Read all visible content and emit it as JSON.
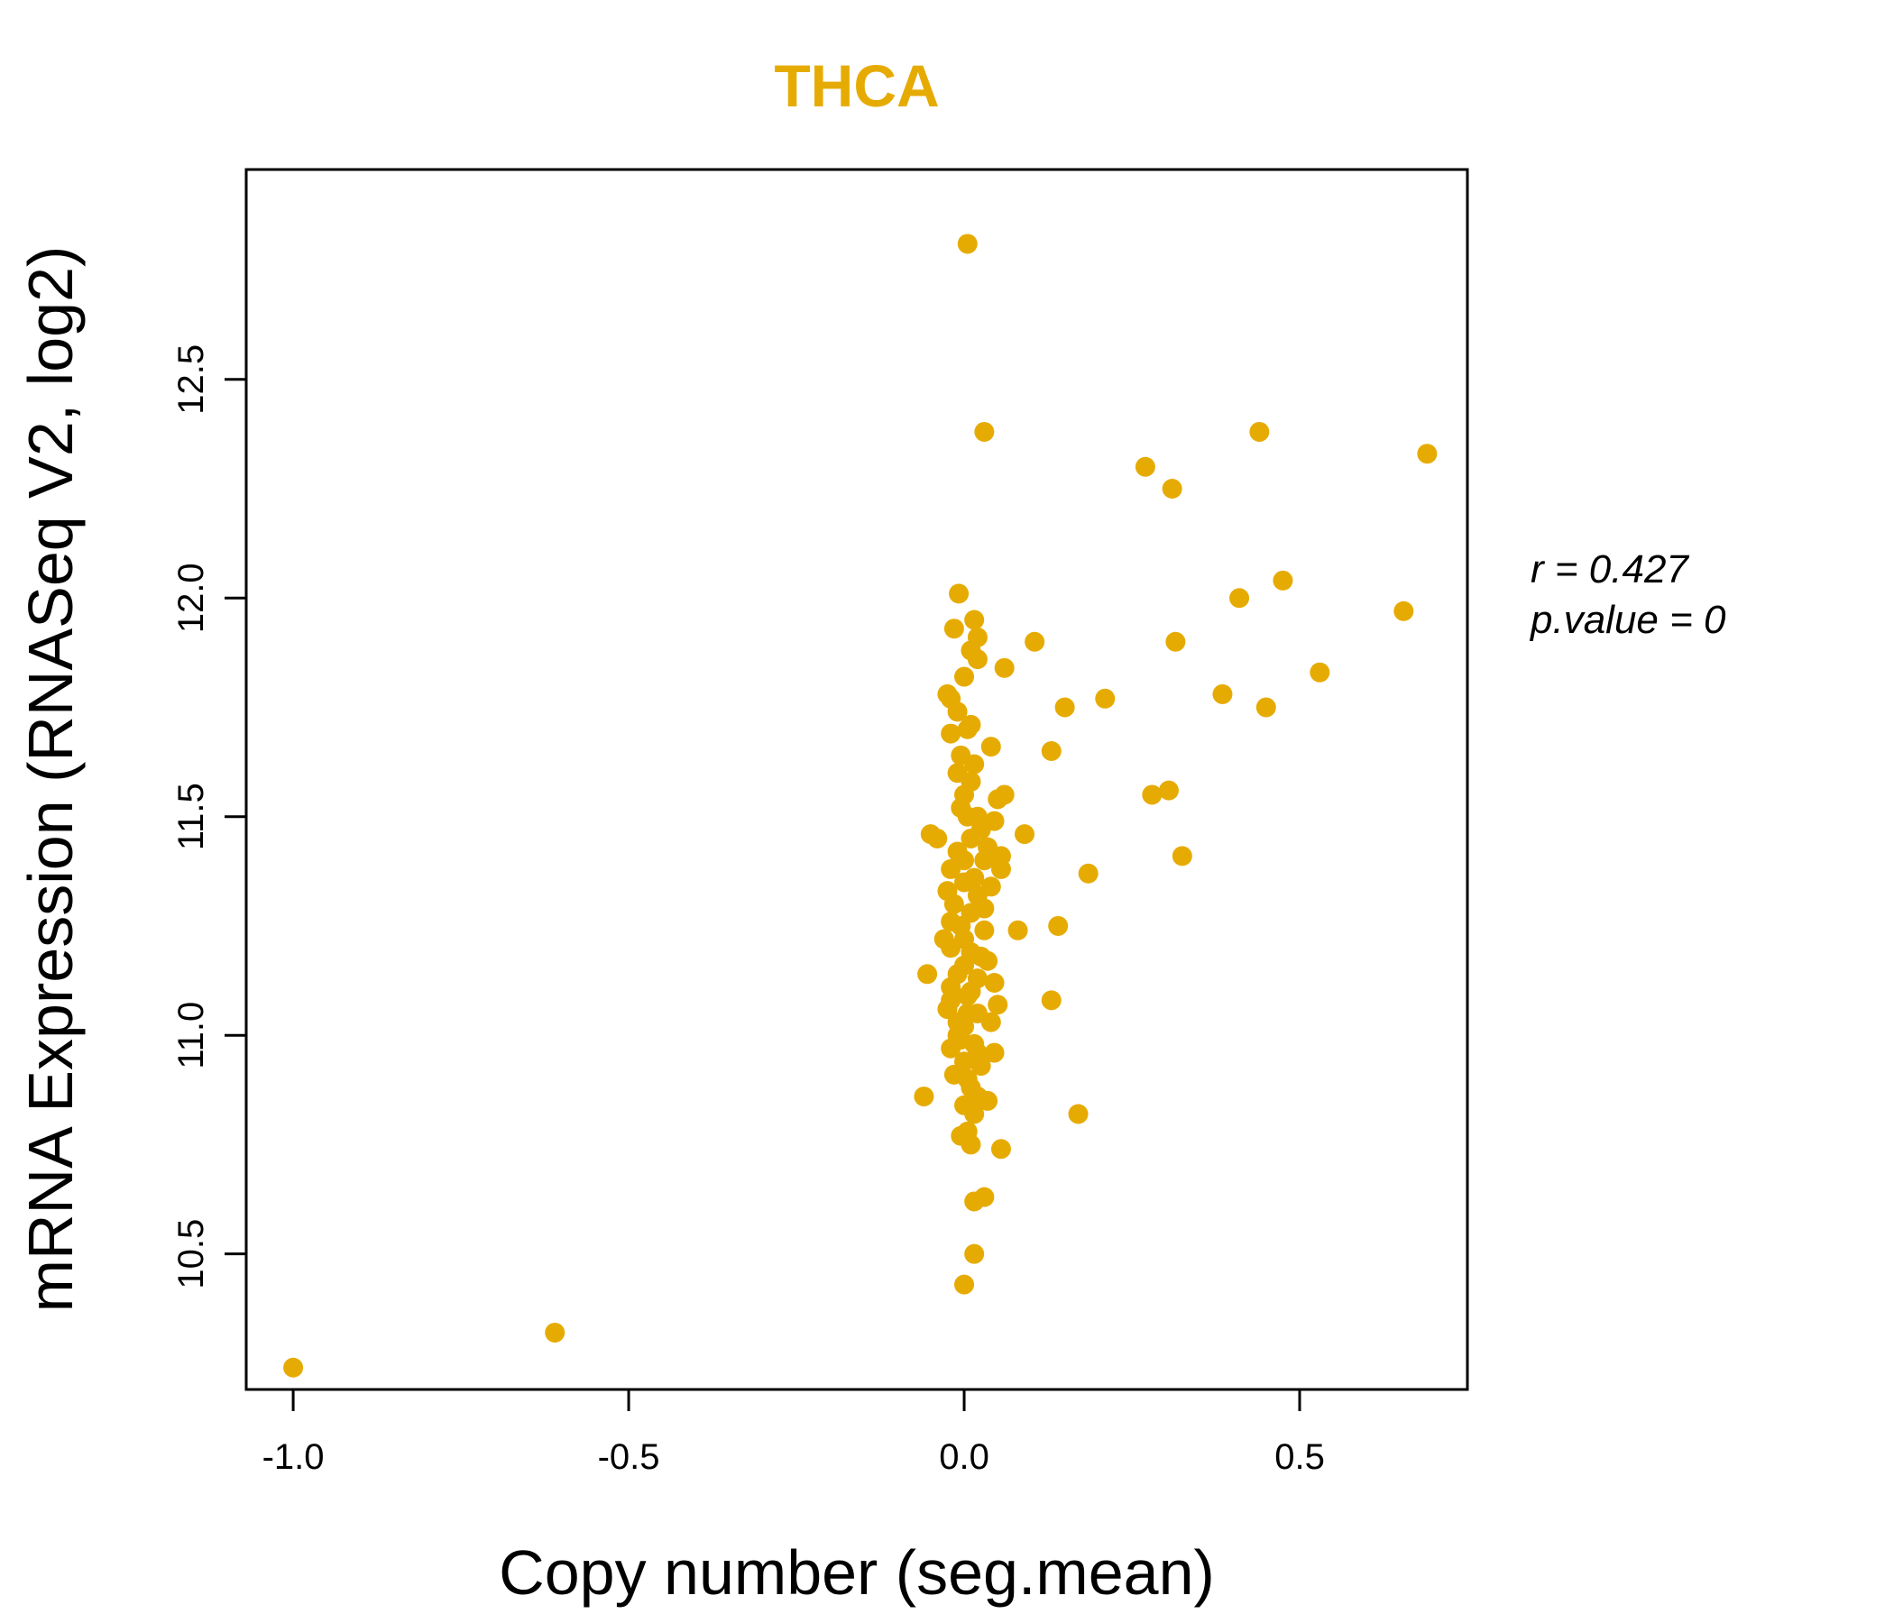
{
  "chart_data": {
    "type": "scatter",
    "title": "THCA",
    "xlabel": "Copy number (seg.mean)",
    "ylabel": "mRNA Expression (RNASeq V2, log2)",
    "xlim": [
      -1.07,
      0.75
    ],
    "ylim": [
      10.19,
      12.98
    ],
    "x_ticks": [
      -1.0,
      -0.5,
      0.0,
      0.5
    ],
    "x_tick_labels": [
      "-1.0",
      "-0.5",
      "0.0",
      "0.5"
    ],
    "y_ticks": [
      10.5,
      11.0,
      11.5,
      12.0,
      12.5
    ],
    "y_tick_labels": [
      "10.5",
      "11.0",
      "11.5",
      "12.0",
      "12.5"
    ],
    "point_color": "#E6AB02",
    "annotations": {
      "r": "r = 0.427",
      "p": "p.value = 0"
    },
    "series": [
      {
        "name": "THCA",
        "points": [
          [
            -1.0,
            10.24
          ],
          [
            -0.61,
            10.32
          ],
          [
            0.005,
            12.81
          ],
          [
            0.03,
            12.38
          ],
          [
            0.27,
            12.3
          ],
          [
            0.31,
            12.25
          ],
          [
            0.44,
            12.38
          ],
          [
            0.69,
            12.33
          ],
          [
            -0.008,
            12.01
          ],
          [
            0.41,
            12.0
          ],
          [
            0.475,
            12.04
          ],
          [
            0.655,
            11.97
          ],
          [
            0.105,
            11.9
          ],
          [
            0.315,
            11.9
          ],
          [
            0.53,
            11.83
          ],
          [
            0.06,
            11.84
          ],
          [
            0.385,
            11.78
          ],
          [
            0.45,
            11.75
          ],
          [
            0.15,
            11.75
          ],
          [
            0.21,
            11.77
          ],
          [
            0.13,
            11.65
          ],
          [
            0.04,
            11.66
          ],
          [
            0.28,
            11.55
          ],
          [
            0.305,
            11.56
          ],
          [
            0.09,
            11.46
          ],
          [
            0.055,
            11.41
          ],
          [
            0.185,
            11.37
          ],
          [
            0.325,
            11.41
          ],
          [
            0.08,
            11.24
          ],
          [
            0.14,
            11.25
          ],
          [
            0.13,
            11.08
          ],
          [
            0.17,
            10.82
          ],
          [
            -0.05,
            11.46
          ],
          [
            -0.04,
            11.45
          ],
          [
            -0.055,
            11.14
          ],
          [
            -0.06,
            10.86
          ],
          [
            -0.02,
            11.77
          ],
          [
            -0.015,
            11.93
          ],
          [
            0.015,
            11.95
          ],
          [
            0.02,
            11.91
          ],
          [
            0.01,
            11.88
          ],
          [
            0.02,
            11.86
          ],
          [
            0.0,
            11.82
          ],
          [
            -0.01,
            11.74
          ],
          [
            0.005,
            11.7
          ],
          [
            0.015,
            11.62
          ],
          [
            0.01,
            11.58
          ],
          [
            0.0,
            11.55
          ],
          [
            -0.005,
            11.52
          ],
          [
            0.02,
            11.5
          ],
          [
            0.05,
            11.54
          ],
          [
            0.06,
            11.55
          ],
          [
            0.045,
            11.49
          ],
          [
            0.01,
            11.45
          ],
          [
            -0.01,
            11.42
          ],
          [
            0.03,
            11.4
          ],
          [
            0.055,
            11.38
          ],
          [
            -0.02,
            11.38
          ],
          [
            0.0,
            11.35
          ],
          [
            0.04,
            11.34
          ],
          [
            0.02,
            11.32
          ],
          [
            -0.015,
            11.3
          ],
          [
            0.01,
            11.28
          ],
          [
            -0.02,
            11.26
          ],
          [
            0.03,
            11.24
          ],
          [
            0.0,
            11.22
          ],
          [
            -0.02,
            11.2
          ],
          [
            0.025,
            11.18
          ],
          [
            0.035,
            11.17
          ],
          [
            0.0,
            11.16
          ],
          [
            -0.01,
            11.14
          ],
          [
            0.045,
            11.12
          ],
          [
            0.01,
            11.1
          ],
          [
            -0.02,
            11.08
          ],
          [
            0.05,
            11.07
          ],
          [
            0.02,
            11.05
          ],
          [
            -0.025,
            11.06
          ],
          [
            0.0,
            11.02
          ],
          [
            0.04,
            11.03
          ],
          [
            -0.01,
            11.0
          ],
          [
            0.015,
            10.98
          ],
          [
            -0.02,
            10.97
          ],
          [
            0.045,
            10.96
          ],
          [
            0.0,
            10.94
          ],
          [
            -0.015,
            10.91
          ],
          [
            0.01,
            10.88
          ],
          [
            0.02,
            10.86
          ],
          [
            0.035,
            10.85
          ],
          [
            0.0,
            10.84
          ],
          [
            0.015,
            10.82
          ],
          [
            0.005,
            10.78
          ],
          [
            -0.005,
            10.77
          ],
          [
            0.01,
            10.75
          ],
          [
            0.055,
            10.74
          ],
          [
            0.015,
            10.62
          ],
          [
            0.03,
            10.63
          ],
          [
            0.015,
            10.5
          ],
          [
            0.0,
            10.43
          ],
          [
            -0.025,
            11.78
          ],
          [
            -0.02,
            11.69
          ],
          [
            -0.005,
            11.64
          ],
          [
            0.025,
            11.47
          ],
          [
            0.035,
            11.43
          ],
          [
            -0.025,
            11.33
          ],
          [
            0.03,
            11.29
          ],
          [
            -0.03,
            11.22
          ],
          [
            0.02,
            11.13
          ],
          [
            -0.02,
            11.11
          ],
          [
            0.005,
            11.05
          ],
          [
            -0.005,
            10.99
          ],
          [
            0.025,
            10.93
          ],
          [
            0.01,
            11.71
          ],
          [
            -0.01,
            11.6
          ],
          [
            0.005,
            11.5
          ],
          [
            0.0,
            11.4
          ],
          [
            0.015,
            11.36
          ],
          [
            -0.005,
            11.25
          ],
          [
            0.01,
            11.19
          ],
          [
            0.005,
            11.09
          ],
          [
            -0.01,
            11.03
          ],
          [
            0.02,
            10.96
          ],
          [
            0.005,
            10.9
          ]
        ]
      }
    ]
  }
}
